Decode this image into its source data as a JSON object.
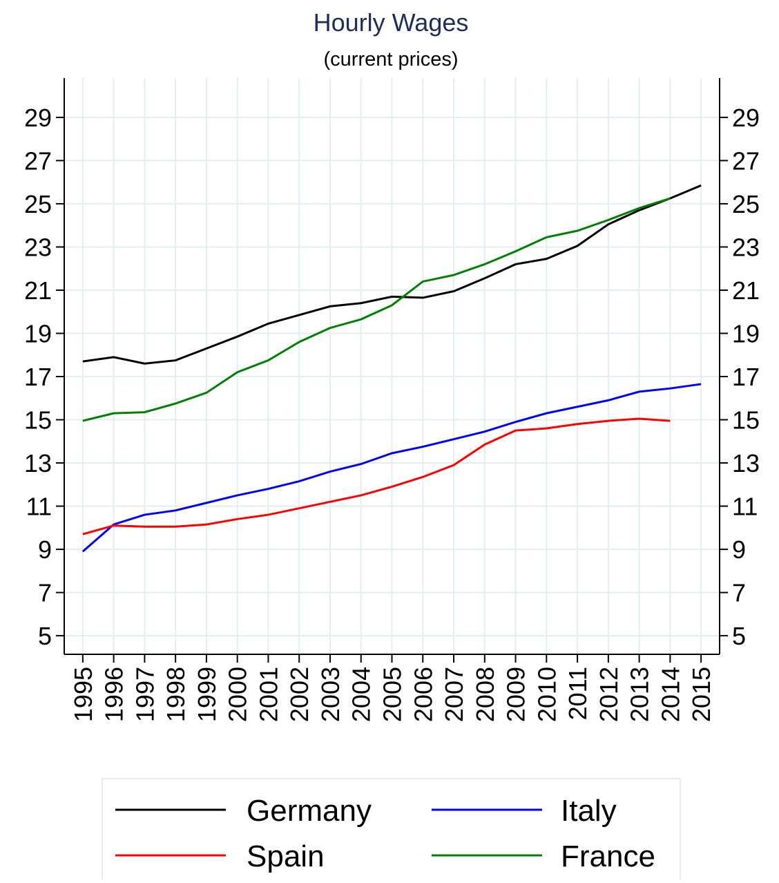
{
  "chart_data": {
    "type": "line",
    "title": "Hourly Wages",
    "subtitle": "(current prices)",
    "x": [
      1995,
      1996,
      1997,
      1998,
      1999,
      2000,
      2001,
      2002,
      2003,
      2004,
      2005,
      2006,
      2007,
      2008,
      2009,
      2010,
      2011,
      2012,
      2013,
      2014,
      2015
    ],
    "series": [
      {
        "name": "Germany",
        "color": "#000000",
        "values": [
          17.7,
          17.9,
          17.6,
          17.75,
          18.3,
          18.85,
          19.45,
          19.85,
          20.25,
          20.4,
          20.7,
          20.65,
          20.95,
          21.55,
          22.2,
          22.45,
          23.05,
          24.05,
          24.7,
          25.25,
          25.85
        ]
      },
      {
        "name": "Italy",
        "color": "#0000ff",
        "values": [
          8.9,
          10.15,
          10.6,
          10.8,
          11.15,
          11.5,
          11.8,
          12.15,
          12.6,
          12.95,
          13.45,
          13.75,
          14.1,
          14.45,
          14.9,
          15.3,
          15.6,
          15.9,
          16.3,
          16.45,
          16.65
        ]
      },
      {
        "name": "Spain",
        "color": "#ff0000",
        "values": [
          9.7,
          10.1,
          10.05,
          10.05,
          10.15,
          10.4,
          10.6,
          10.9,
          11.2,
          11.5,
          11.9,
          12.35,
          12.9,
          13.85,
          14.5,
          14.6,
          14.8,
          14.95,
          15.05,
          14.95,
          null
        ]
      },
      {
        "name": "France",
        "color": "#008000",
        "values": [
          14.95,
          15.3,
          15.35,
          15.75,
          16.25,
          17.2,
          17.75,
          18.6,
          19.25,
          19.65,
          20.3,
          21.4,
          21.7,
          22.2,
          22.8,
          23.45,
          23.75,
          24.25,
          24.8,
          25.25,
          null
        ]
      }
    ],
    "xlim": [
      1994.4,
      2015.6
    ],
    "xticks": [
      1995,
      1996,
      1997,
      1998,
      1999,
      2000,
      2001,
      2002,
      2003,
      2004,
      2005,
      2006,
      2007,
      2008,
      2009,
      2010,
      2011,
      2012,
      2013,
      2014,
      2015
    ],
    "ylim": [
      4.14,
      30.82
    ],
    "yticks": [
      5,
      7,
      9,
      11,
      13,
      15,
      17,
      19,
      21,
      23,
      25,
      27,
      29
    ],
    "grid": true
  }
}
